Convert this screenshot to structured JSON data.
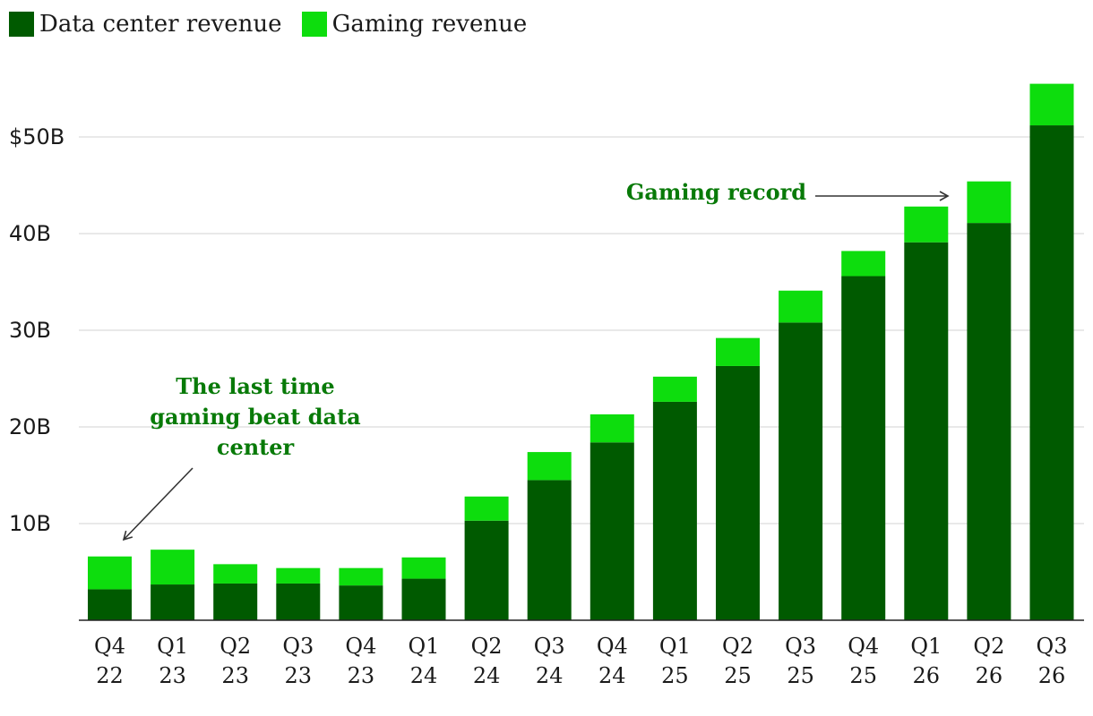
{
  "chart_data": {
    "type": "bar",
    "stacked": true,
    "categories": [
      [
        "Q4",
        "22"
      ],
      [
        "Q1",
        "23"
      ],
      [
        "Q2",
        "23"
      ],
      [
        "Q3",
        "23"
      ],
      [
        "Q4",
        "23"
      ],
      [
        "Q1",
        "24"
      ],
      [
        "Q2",
        "24"
      ],
      [
        "Q3",
        "24"
      ],
      [
        "Q4",
        "24"
      ],
      [
        "Q1",
        "25"
      ],
      [
        "Q2",
        "25"
      ],
      [
        "Q3",
        "25"
      ],
      [
        "Q4",
        "25"
      ],
      [
        "Q1",
        "26"
      ],
      [
        "Q2",
        "26"
      ],
      [
        "Q3",
        "26"
      ]
    ],
    "series": [
      {
        "name": "Data center revenue",
        "color": "#005a00",
        "values": [
          3.2,
          3.7,
          3.8,
          3.8,
          3.6,
          4.3,
          10.3,
          14.5,
          18.4,
          22.6,
          26.3,
          30.8,
          35.6,
          39.1,
          41.1,
          51.2
        ]
      },
      {
        "name": "Gaming revenue",
        "color": "#0ddd0d",
        "values": [
          3.4,
          3.6,
          2.0,
          1.6,
          1.8,
          2.2,
          2.5,
          2.9,
          2.9,
          2.6,
          2.9,
          3.3,
          2.6,
          3.7,
          4.3,
          4.3
        ]
      }
    ],
    "y_ticks": [
      {
        "value": 10,
        "label": "10B"
      },
      {
        "value": 20,
        "label": "20B"
      },
      {
        "value": 30,
        "label": "30B"
      },
      {
        "value": 40,
        "label": "40B"
      },
      {
        "value": 50,
        "label": "$50B"
      }
    ],
    "ylim": [
      0,
      57
    ],
    "grid": true,
    "legend_position": "top-left",
    "annotations": [
      {
        "name": "last-time-annotation",
        "lines": [
          "The last time",
          "gaming beat data",
          "center"
        ],
        "color": "#087a08",
        "points_to_index": 0
      },
      {
        "name": "gaming-record-annotation",
        "lines": [
          "Gaming record"
        ],
        "color": "#087a08",
        "points_to_index": 13
      }
    ]
  }
}
